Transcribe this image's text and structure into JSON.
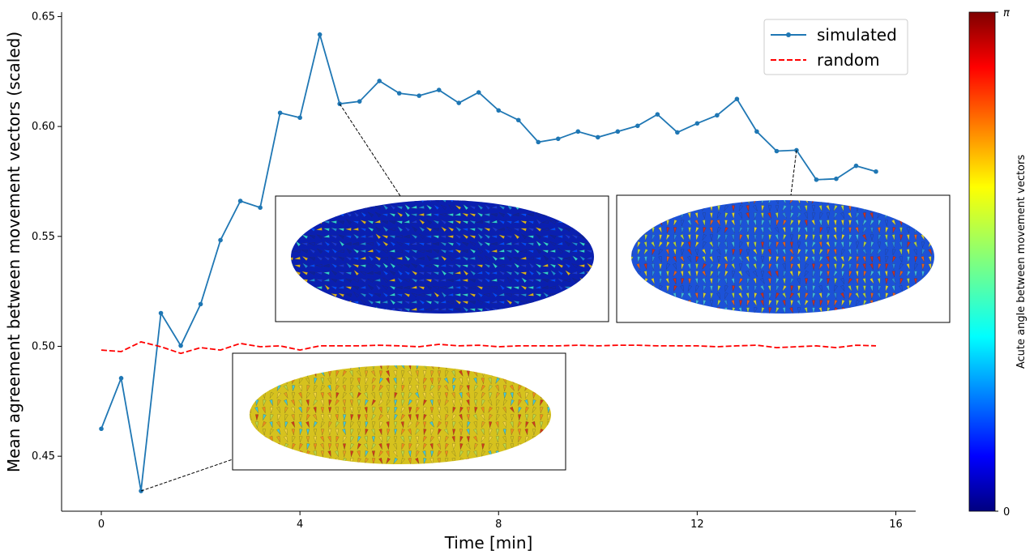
{
  "chart_data": {
    "type": "line",
    "title": "",
    "xlabel": "Time [min]",
    "ylabel": "Mean agreement between movement vectors (scaled)",
    "xlim": [
      -0.8,
      16.4
    ],
    "ylim": [
      0.425,
      0.652
    ],
    "x_ticks": [
      0,
      4,
      8,
      12,
      16
    ],
    "x_tick_labels": [
      "0",
      "4",
      "8",
      "12",
      "16"
    ],
    "y_ticks": [
      0.45,
      0.5,
      0.55,
      0.6,
      0.65
    ],
    "y_tick_labels": [
      "0.45",
      "0.50",
      "0.55",
      "0.60",
      "0.65"
    ],
    "grid": false,
    "legend": {
      "position": "top-right",
      "entries": [
        "simulated",
        "random"
      ]
    },
    "series": [
      {
        "name": "simulated",
        "color": "#1f77b4",
        "style": "solid-with-dots",
        "x": [
          0,
          0.4,
          0.8,
          1.2,
          1.6,
          2.0,
          2.4,
          2.8,
          3.2,
          3.6,
          4.0,
          4.4,
          4.8,
          5.2,
          5.6,
          6.0,
          6.4,
          6.8,
          7.2,
          7.6,
          8.0,
          8.4,
          8.8,
          9.2,
          9.6,
          10.0,
          10.4,
          10.8,
          11.2,
          11.6,
          12.0,
          12.4,
          12.8,
          13.2,
          13.6,
          14.0,
          14.4,
          14.8,
          15.2,
          15.6
        ],
        "y": [
          0.4625,
          0.4855,
          0.4342,
          0.5151,
          0.5003,
          0.5192,
          0.5483,
          0.5661,
          0.5631,
          0.6062,
          0.604,
          0.6418,
          0.6103,
          0.6114,
          0.6207,
          0.6151,
          0.614,
          0.6166,
          0.6107,
          0.6155,
          0.6073,
          0.6029,
          0.5929,
          0.5944,
          0.5977,
          0.5951,
          0.5977,
          0.6003,
          0.6055,
          0.5973,
          0.6014,
          0.6051,
          0.6125,
          0.5977,
          0.5888,
          0.5892,
          0.5758,
          0.5762,
          0.5821,
          0.5795
        ]
      },
      {
        "name": "random",
        "color": "#ff0000",
        "style": "dashed",
        "x": [
          0,
          0.4,
          0.8,
          1.2,
          1.6,
          2.0,
          2.4,
          2.8,
          3.2,
          3.6,
          4.0,
          4.4,
          4.8,
          5.2,
          5.6,
          6.0,
          6.4,
          6.8,
          7.2,
          7.6,
          8.0,
          8.4,
          8.8,
          9.2,
          9.6,
          10.0,
          10.4,
          10.8,
          11.2,
          11.6,
          12.0,
          12.4,
          12.8,
          13.2,
          13.6,
          14.0,
          14.4,
          14.8,
          15.2,
          15.6
        ],
        "y": [
          0.4983,
          0.4976,
          0.502,
          0.4998,
          0.4968,
          0.4994,
          0.4983,
          0.5013,
          0.4998,
          0.5002,
          0.4983,
          0.5002,
          0.5002,
          0.5002,
          0.5005,
          0.5002,
          0.4998,
          0.5009,
          0.5002,
          0.5005,
          0.4998,
          0.5002,
          0.5002,
          0.5002,
          0.5005,
          0.5002,
          0.5005,
          0.5005,
          0.5002,
          0.5002,
          0.5002,
          0.4998,
          0.5002,
          0.5005,
          0.4994,
          0.4998,
          0.5002,
          0.4994,
          0.5005,
          0.5002
        ]
      }
    ],
    "insets": [
      {
        "name": "embryo-snapshot-early",
        "anchor_x": 0.8,
        "anchor_y": 0.4342,
        "palette": "warm"
      },
      {
        "name": "embryo-snapshot-mid",
        "anchor_x": 4.8,
        "anchor_y": 0.6103,
        "palette": "cool"
      },
      {
        "name": "embryo-snapshot-late",
        "anchor_x": 14.0,
        "anchor_y": 0.5892,
        "palette": "mixed"
      }
    ],
    "colorbar": {
      "label": "Acute angle between movement vectors",
      "colormap": "jet",
      "min_label": "0",
      "max_label": "π"
    }
  }
}
